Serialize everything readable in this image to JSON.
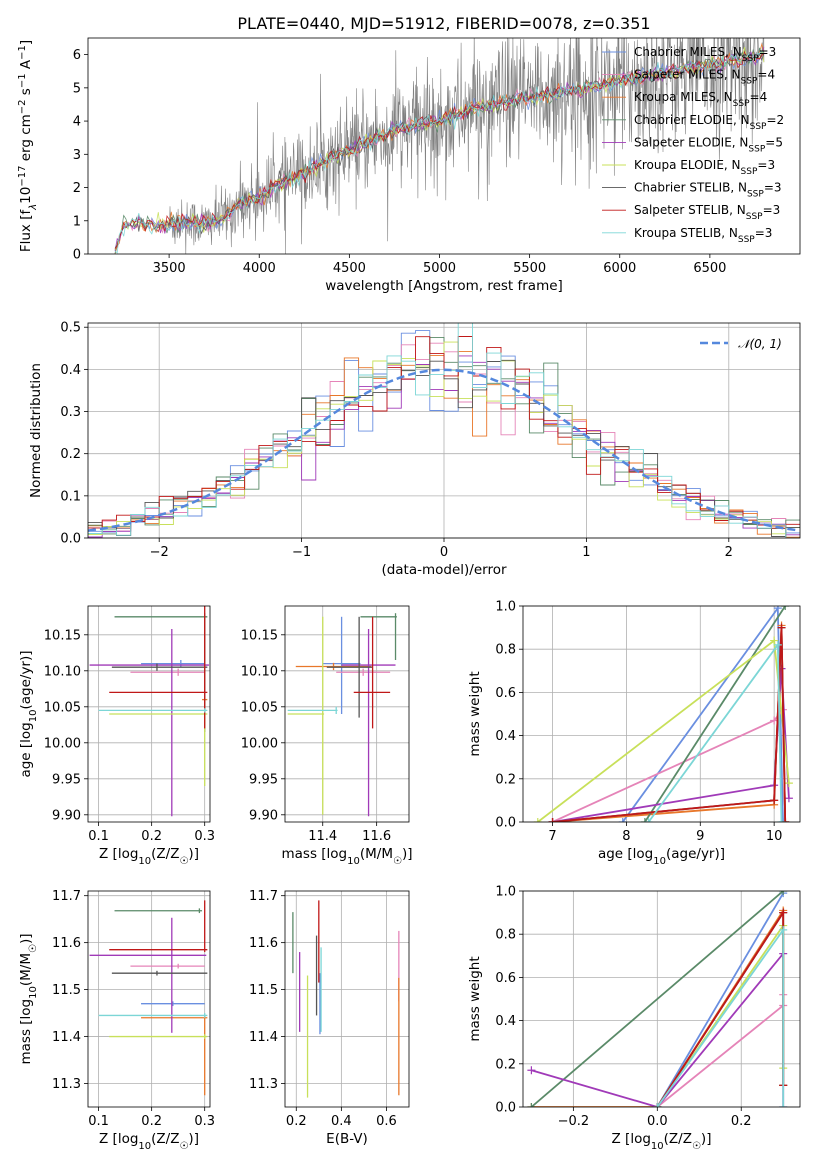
{
  "figure_title": "PLATE=0440, MJD=51912, FIBERID=0078, z=0.351",
  "colors": {
    "Chabrier MILES": "#6a8fe0",
    "Salpeter MILES": "#e584b8",
    "Kroupa MILES": "#e8772a",
    "Chabrier ELODIE": "#5a8a68",
    "Salpeter ELODIE": "#a03ab8",
    "Kroupa ELODIE": "#c8e05a",
    "Chabrier STELIB": "#555555",
    "Salpeter STELIB": "#c01818",
    "Kroupa STELIB": "#7cd6d6",
    "spectrum": "#808080",
    "normal": "#5588dd",
    "grid": "#b0b0b0"
  },
  "chart_data": [
    {
      "id": "spectrum",
      "type": "line",
      "xlabel": "wavelength [Angstrom, rest frame]",
      "ylabel": "Flux [f_λ10^-17 erg cm^-2 s^-1 A^-1]",
      "xlim": [
        3050,
        7000
      ],
      "ylim": [
        0,
        6.5
      ],
      "xticks": [
        3500,
        4000,
        4500,
        5000,
        5500,
        6000,
        6500
      ],
      "yticks": [
        0,
        1,
        2,
        3,
        4,
        5,
        6
      ],
      "grid": false,
      "legend_position": "top-right",
      "legend": [
        {
          "model": "Chabrier MILES",
          "label": "Chabrier MILES, N",
          "sub": "SSP",
          "rest": "=3"
        },
        {
          "model": "Salpeter MILES",
          "label": "Salpeter MILES, N",
          "sub": "SSP",
          "rest": "=4"
        },
        {
          "model": "Kroupa MILES",
          "label": "Kroupa MILES, N",
          "sub": "SSP",
          "rest": "=4"
        },
        {
          "model": "Chabrier ELODIE",
          "label": "Chabrier ELODIE, N",
          "sub": "SSP",
          "rest": "=2"
        },
        {
          "model": "Salpeter ELODIE",
          "label": "Salpeter ELODIE, N",
          "sub": "SSP",
          "rest": "=5"
        },
        {
          "model": "Kroupa ELODIE",
          "label": "Kroupa ELODIE, N",
          "sub": "SSP",
          "rest": "=3"
        },
        {
          "model": "Chabrier STELIB",
          "label": "Chabrier STELIB, N",
          "sub": "SSP",
          "rest": "=3"
        },
        {
          "model": "Salpeter STELIB",
          "label": "Salpeter STELIB, N",
          "sub": "SSP",
          "rest": "=3"
        },
        {
          "model": "Kroupa STELIB",
          "label": "Kroupa STELIB, N",
          "sub": "SSP",
          "rest": "=3"
        }
      ],
      "model_continuum": {
        "x": [
          3200,
          3250,
          3300,
          3400,
          3450,
          3500,
          3600,
          3700,
          3800,
          3850,
          3900,
          4000,
          4100,
          4200,
          4300,
          4400,
          4500,
          4600,
          4700,
          4800,
          4900,
          5000,
          5100,
          5200,
          5300,
          5400,
          5500,
          5600,
          5700,
          5800,
          5900,
          6000,
          6100,
          6200,
          6300,
          6400,
          6500,
          6600,
          6700,
          6800
        ],
        "y": [
          0.1,
          0.9,
          0.95,
          0.9,
          0.85,
          0.9,
          0.95,
          0.9,
          1.1,
          1.3,
          1.6,
          1.7,
          2.1,
          2.3,
          2.6,
          2.9,
          3.1,
          3.4,
          3.6,
          3.8,
          3.9,
          4.0,
          4.2,
          4.4,
          4.5,
          4.6,
          4.7,
          4.8,
          4.9,
          5.0,
          5.1,
          5.2,
          5.3,
          5.4,
          5.5,
          5.6,
          5.7,
          5.8,
          5.9,
          6.0
        ]
      },
      "data_range": [
        3500,
        6800
      ]
    },
    {
      "id": "residuals",
      "type": "line",
      "xlabel": "(data-model)/error",
      "ylabel": "Normed distribution",
      "xlim": [
        -2.5,
        2.5
      ],
      "ylim": [
        0,
        0.51
      ],
      "xticks": [
        -2,
        -1,
        0,
        1,
        2
      ],
      "yticks": [
        0.0,
        0.1,
        0.2,
        0.3,
        0.4,
        0.5
      ],
      "grid": true,
      "legend_position": "top-right",
      "legend": [
        {
          "label": "𝒩(0, 1)",
          "style": "dashed"
        }
      ],
      "bin_width": 0.1
    },
    {
      "id": "age-vs-z",
      "type": "scatter",
      "xlabel": "Z [log10(Z/Z☉)]",
      "ylabel": "age  [log10(age/yr)]",
      "xlim": [
        0.08,
        0.31
      ],
      "ylim": [
        9.89,
        10.19
      ],
      "xticks": [
        0.1,
        0.2,
        0.3
      ],
      "yticks": [
        9.9,
        9.95,
        10.0,
        10.05,
        10.1,
        10.15
      ],
      "grid": true,
      "points": [
        {
          "model": "Chabrier MILES",
          "x": 0.255,
          "xerr": [
            0.075,
            0.045
          ],
          "y": 10.11,
          "yerr": [
            0.005,
            0.005
          ]
        },
        {
          "model": "Salpeter MILES",
          "x": 0.25,
          "xerr": [
            0.09,
            0.05
          ],
          "y": 10.098,
          "yerr": [
            0.005,
            0.005
          ]
        },
        {
          "model": "Kroupa MILES",
          "x": 0.3,
          "xerr": [
            0.005,
            0.005
          ],
          "y": 10.06,
          "yerr": [
            0.045,
            0.115
          ]
        },
        {
          "model": "Chabrier ELODIE",
          "x": 0.3,
          "xerr": [
            0.17,
            0.005
          ],
          "y": 10.175,
          "yerr": [
            0.16,
            0.005
          ]
        },
        {
          "model": "Salpeter ELODIE",
          "x": 0.238,
          "xerr": [
            0.155,
            0.07
          ],
          "y": 10.108,
          "yerr": [
            0.21,
            0.05
          ]
        },
        {
          "model": "Kroupa ELODIE",
          "x": 0.3,
          "xerr": [
            0.18,
            0.005
          ],
          "y": 10.04,
          "yerr": [
            0.1,
            0.005
          ]
        },
        {
          "model": "Chabrier STELIB",
          "x": 0.21,
          "xerr": [
            0.085,
            0.095
          ],
          "y": 10.105,
          "yerr": [
            0.005,
            0.005
          ]
        },
        {
          "model": "Salpeter STELIB",
          "x": 0.3,
          "xerr": [
            0.18,
            0.005
          ],
          "y": 10.07,
          "yerr": [
            0.05,
            0.12
          ]
        },
        {
          "model": "Kroupa STELIB",
          "x": 0.3,
          "xerr": [
            0.2,
            0.005
          ],
          "y": 10.045,
          "yerr": [
            0.003,
            0.003
          ]
        }
      ]
    },
    {
      "id": "age-vs-mass",
      "type": "scatter",
      "xlabel": "mass [log10(M/M☉)]",
      "ylabel": "",
      "xlim": [
        11.26,
        11.72
      ],
      "ylim": [
        9.89,
        10.19
      ],
      "xticks": [
        11.4,
        11.6
      ],
      "yticks": [
        9.9,
        9.95,
        10.0,
        10.05,
        10.1,
        10.15
      ],
      "grid": true,
      "points": [
        {
          "model": "Chabrier MILES",
          "x": 11.47,
          "xerr": [
            0.07,
            0.07
          ],
          "y": 10.11,
          "yerr": [
            0.07,
            0.065
          ]
        },
        {
          "model": "Salpeter MILES",
          "x": 11.55,
          "xerr": [
            0.1,
            0.1
          ],
          "y": 10.098,
          "yerr": [
            0.005,
            0.005
          ]
        },
        {
          "model": "Kroupa MILES",
          "x": 11.44,
          "xerr": [
            0.14,
            0.14
          ],
          "y": 10.106,
          "yerr": [
            0.005,
            0.005
          ]
        },
        {
          "model": "Chabrier ELODIE",
          "x": 11.67,
          "xerr": [
            0.13,
            0.005
          ],
          "y": 10.175,
          "yerr": [
            0.06,
            0.005
          ]
        },
        {
          "model": "Salpeter ELODIE",
          "x": 11.57,
          "xerr": [
            0.1,
            0.1
          ],
          "y": 10.108,
          "yerr": [
            0.21,
            0.05
          ]
        },
        {
          "model": "Kroupa ELODIE",
          "x": 11.4,
          "xerr": [
            0.13,
            0.005
          ],
          "y": 10.04,
          "yerr": [
            0.14,
            0.135
          ]
        },
        {
          "model": "Chabrier STELIB",
          "x": 11.535,
          "xerr": [
            0.12,
            0.05
          ],
          "y": 10.105,
          "yerr": [
            0.07,
            0.07
          ]
        },
        {
          "model": "Salpeter STELIB",
          "x": 11.585,
          "xerr": [
            0.07,
            0.065
          ],
          "y": 10.07,
          "yerr": [
            0.05,
            0.105
          ]
        },
        {
          "model": "Kroupa STELIB",
          "x": 11.45,
          "xerr": [
            0.18,
            0.005
          ],
          "y": 10.045,
          "yerr": [
            0.005,
            0.005
          ]
        }
      ]
    },
    {
      "id": "mass-weight-vs-age",
      "type": "line",
      "xlabel": "age  [log10(age/yr)]",
      "ylabel": "mass weight",
      "xlim": [
        6.6,
        10.35
      ],
      "ylim": [
        0,
        1.0
      ],
      "xticks": [
        7,
        8,
        9,
        10
      ],
      "yticks": [
        0.0,
        0.2,
        0.4,
        0.6,
        0.8,
        1.0
      ],
      "grid": true,
      "series": [
        {
          "model": "Chabrier MILES",
          "x": [
            7.95,
            10.05,
            10.12
          ],
          "y": [
            0.0,
            0.99,
            0.0
          ]
        },
        {
          "model": "Salpeter MILES",
          "x": [
            7.0,
            10.0,
            10.12
          ],
          "y": [
            0.0,
            0.47,
            0.52
          ]
        },
        {
          "model": "Kroupa MILES",
          "x": [
            7.0,
            10.0,
            10.1,
            10.15
          ],
          "y": [
            0.0,
            0.08,
            0.91,
            0.0
          ]
        },
        {
          "model": "Chabrier ELODIE",
          "x": [
            8.25,
            10.15
          ],
          "y": [
            0.0,
            1.0
          ]
        },
        {
          "model": "Salpeter ELODIE",
          "x": [
            7.0,
            10.0,
            10.1,
            10.2
          ],
          "y": [
            0.0,
            0.17,
            0.71,
            0.11
          ]
        },
        {
          "model": "Kroupa ELODIE",
          "x": [
            6.8,
            10.0,
            10.2
          ],
          "y": [
            0.0,
            0.84,
            0.18
          ]
        },
        {
          "model": "Chabrier STELIB",
          "x": [
            7.0,
            10.0,
            10.1,
            10.15
          ],
          "y": [
            0.0,
            0.1,
            0.9,
            0.0
          ]
        },
        {
          "model": "Salpeter STELIB",
          "x": [
            7.0,
            10.0,
            10.1,
            10.15
          ],
          "y": [
            0.0,
            0.1,
            0.9,
            0.0
          ]
        },
        {
          "model": "Kroupa STELIB",
          "x": [
            8.3,
            10.05,
            10.1
          ],
          "y": [
            0.0,
            0.82,
            0.0
          ]
        }
      ]
    },
    {
      "id": "mass-vs-z",
      "type": "scatter",
      "xlabel": "Z [log10(Z/Z☉)]",
      "ylabel": "mass [log10(M/M☉)]",
      "xlim": [
        0.08,
        0.31
      ],
      "ylim": [
        11.25,
        11.71
      ],
      "xticks": [
        0.1,
        0.2,
        0.3
      ],
      "yticks": [
        11.3,
        11.4,
        11.5,
        11.6,
        11.7
      ],
      "grid": true,
      "points": [
        {
          "model": "Chabrier MILES",
          "x": 0.24,
          "xerr": [
            0.06,
            0.06
          ],
          "y": 11.47,
          "yerr": [
            0.005,
            0.005
          ]
        },
        {
          "model": "Salpeter MILES",
          "x": 0.25,
          "xerr": [
            0.09,
            0.05
          ],
          "y": 11.55,
          "yerr": [
            0.005,
            0.005
          ]
        },
        {
          "model": "Kroupa MILES",
          "x": 0.3,
          "xerr": [
            0.12,
            0.005
          ],
          "y": 11.44,
          "yerr": [
            0.165,
            0.005
          ]
        },
        {
          "model": "Chabrier ELODIE",
          "x": 0.29,
          "xerr": [
            0.16,
            0.005
          ],
          "y": 11.668,
          "yerr": [
            0.005,
            0.005
          ]
        },
        {
          "model": "Salpeter ELODIE",
          "x": 0.238,
          "xerr": [
            0.155,
            0.065
          ],
          "y": 11.573,
          "yerr": [
            0.165,
            0.08
          ]
        },
        {
          "model": "Kroupa ELODIE",
          "x": 0.3,
          "xerr": [
            0.18,
            0.005
          ],
          "y": 11.4,
          "yerr": [
            0.005,
            0.005
          ]
        },
        {
          "model": "Chabrier STELIB",
          "x": 0.21,
          "xerr": [
            0.085,
            0.095
          ],
          "y": 11.535,
          "yerr": [
            0.005,
            0.005
          ]
        },
        {
          "model": "Salpeter STELIB",
          "x": 0.3,
          "xerr": [
            0.18,
            0.005
          ],
          "y": 11.585,
          "yerr": [
            0.005,
            0.105
          ]
        },
        {
          "model": "Kroupa STELIB",
          "x": 0.3,
          "xerr": [
            0.2,
            0.005
          ],
          "y": 11.445,
          "yerr": [
            0.005,
            0.005
          ]
        }
      ]
    },
    {
      "id": "mass-vs-ebv",
      "type": "scatter",
      "xlabel": "E(B-V)",
      "ylabel": "",
      "xlim": [
        0.15,
        0.7
      ],
      "ylim": [
        11.25,
        11.71
      ],
      "xticks": [
        0.2,
        0.4,
        0.6
      ],
      "yticks": [
        11.3,
        11.4,
        11.5,
        11.6,
        11.7
      ],
      "grid": true,
      "points": [
        {
          "model": "Chabrier MILES",
          "x": 0.305,
          "xerr": [
            0,
            0
          ],
          "y": 11.47,
          "yerr": [
            0.065,
            0.065
          ]
        },
        {
          "model": "Salpeter MILES",
          "x": 0.655,
          "xerr": [
            0,
            0
          ],
          "y": 11.55,
          "yerr": [
            0.075,
            0.075
          ]
        },
        {
          "model": "Kroupa MILES",
          "x": 0.655,
          "xerr": [
            0,
            0
          ],
          "y": 11.44,
          "yerr": [
            0.165,
            0.085
          ]
        },
        {
          "model": "Chabrier ELODIE",
          "x": 0.185,
          "xerr": [
            0,
            0
          ],
          "y": 11.6,
          "yerr": [
            0.065,
            0.065
          ]
        },
        {
          "model": "Salpeter ELODIE",
          "x": 0.215,
          "xerr": [
            0,
            0
          ],
          "y": 11.5,
          "yerr": [
            0.09,
            0.08
          ]
        },
        {
          "model": "Kroupa ELODIE",
          "x": 0.25,
          "xerr": [
            0,
            0
          ],
          "y": 11.4,
          "yerr": [
            0.13,
            0.13
          ]
        },
        {
          "model": "Chabrier STELIB",
          "x": 0.29,
          "xerr": [
            0,
            0
          ],
          "y": 11.535,
          "yerr": [
            0.09,
            0.08
          ]
        },
        {
          "model": "Salpeter STELIB",
          "x": 0.3,
          "xerr": [
            0,
            0
          ],
          "y": 11.585,
          "yerr": [
            0.07,
            0.105
          ]
        },
        {
          "model": "Kroupa STELIB",
          "x": 0.31,
          "xerr": [
            0,
            0
          ],
          "y": 11.5,
          "yerr": [
            0.09,
            0.09
          ]
        }
      ]
    },
    {
      "id": "mass-weight-vs-z",
      "type": "line",
      "xlabel": "Z [log10(Z/Z☉)]",
      "ylabel": "mass weight",
      "xlim": [
        -0.32,
        0.34
      ],
      "ylim": [
        0,
        1.0
      ],
      "xticks": [
        -0.2,
        0.0,
        0.2
      ],
      "yticks": [
        0.0,
        0.2,
        0.4,
        0.6,
        0.8,
        1.0
      ],
      "grid": true,
      "series": [
        {
          "model": "Chabrier MILES",
          "x": [
            0.0,
            0.3
          ],
          "y": [
            0.0,
            0.99
          ]
        },
        {
          "model": "Salpeter MILES",
          "x": [
            0.0,
            0.3,
            0.3
          ],
          "y": [
            0.0,
            0.47,
            0.52
          ]
        },
        {
          "model": "Kroupa MILES",
          "x": [
            -0.3,
            0.0,
            0.3,
            0.3
          ],
          "y": [
            0.0,
            0.0,
            0.91,
            0.1
          ]
        },
        {
          "model": "Chabrier ELODIE",
          "x": [
            -0.3,
            0.3
          ],
          "y": [
            0.0,
            1.0
          ]
        },
        {
          "model": "Salpeter ELODIE",
          "x": [
            -0.3,
            0.0,
            0.3,
            0.3
          ],
          "y": [
            0.17,
            0.0,
            0.71,
            0.0
          ]
        },
        {
          "model": "Kroupa ELODIE",
          "x": [
            0.0,
            0.3,
            0.3
          ],
          "y": [
            0.0,
            0.84,
            0.18
          ]
        },
        {
          "model": "Chabrier STELIB",
          "x": [
            0.0,
            0.3,
            0.3
          ],
          "y": [
            0.0,
            0.9,
            0.1
          ]
        },
        {
          "model": "Salpeter STELIB",
          "x": [
            0.0,
            0.3,
            0.3
          ],
          "y": [
            0.0,
            0.9,
            0.1
          ]
        },
        {
          "model": "Kroupa STELIB",
          "x": [
            0.0,
            0.3,
            0.3
          ],
          "y": [
            0.0,
            0.82,
            0.0
          ]
        }
      ]
    }
  ]
}
